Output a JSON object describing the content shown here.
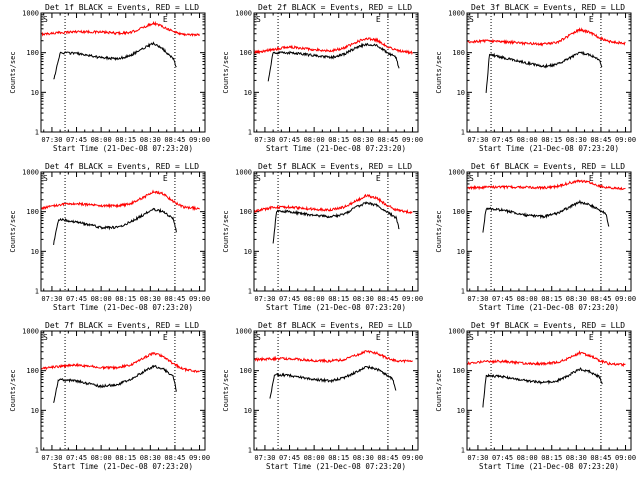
{
  "chart_data": {
    "type": "line",
    "yscale": "log",
    "ylim": [
      1,
      1000
    ],
    "y_ticks": [
      "1",
      "10",
      "100",
      "1000"
    ],
    "ylabel": "Counts/sec",
    "xlabel": "Start Time (21-Dec-08 07:23:20)",
    "x_ticks": [
      "07:30",
      "07:45",
      "08:00",
      "08:15",
      "08:30",
      "08:45",
      "09:00"
    ],
    "series_colors": {
      "events": "#000000",
      "lld": "#ff0000"
    },
    "start_marker": "S",
    "end_marker": "E",
    "panels": [
      {
        "title": "Det 1f BLACK = Events, RED = LLD",
        "events": {
          "x": [
            "07:31",
            "07:35",
            "07:45",
            "08:00",
            "08:10",
            "08:18",
            "08:25",
            "08:32",
            "08:38",
            "08:44",
            "08:46"
          ],
          "y": [
            20,
            100,
            95,
            75,
            70,
            85,
            125,
            175,
            120,
            70,
            40
          ]
        },
        "lld": {
          "x": [
            "07:23",
            "07:35",
            "07:45",
            "08:00",
            "08:10",
            "08:18",
            "08:25",
            "08:32",
            "08:38",
            "08:44",
            "08:50",
            "09:00"
          ],
          "y": [
            290,
            320,
            340,
            330,
            310,
            320,
            420,
            560,
            450,
            340,
            290,
            280
          ]
        }
      },
      {
        "title": "Det 2f BLACK = Events, RED = LLD",
        "events": {
          "x": [
            "07:32",
            "07:35",
            "07:45",
            "08:00",
            "08:10",
            "08:18",
            "08:25",
            "08:32",
            "08:38",
            "08:44",
            "08:50",
            "08:52"
          ],
          "y": [
            20,
            100,
            100,
            85,
            75,
            90,
            130,
            165,
            150,
            105,
            75,
            35
          ]
        },
        "lld": {
          "x": [
            "07:23",
            "07:35",
            "07:45",
            "08:00",
            "08:10",
            "08:18",
            "08:25",
            "08:32",
            "08:38",
            "08:44",
            "08:50",
            "09:00"
          ],
          "y": [
            100,
            120,
            140,
            120,
            110,
            130,
            180,
            230,
            210,
            150,
            115,
            100
          ]
        }
      },
      {
        "title": "Det 3f BLACK = Events, RED = LLD",
        "events": {
          "x": [
            "07:35",
            "07:37",
            "07:45",
            "08:00",
            "08:10",
            "08:18",
            "08:25",
            "08:32",
            "08:38",
            "08:44",
            "08:46"
          ],
          "y": [
            10,
            90,
            75,
            55,
            45,
            50,
            70,
            100,
            90,
            65,
            40
          ]
        },
        "lld": {
          "x": [
            "07:23",
            "07:35",
            "07:45",
            "08:00",
            "08:10",
            "08:18",
            "08:25",
            "08:32",
            "08:38",
            "08:44",
            "08:50",
            "09:00"
          ],
          "y": [
            180,
            200,
            190,
            170,
            165,
            180,
            260,
            380,
            330,
            240,
            190,
            170
          ]
        }
      },
      {
        "title": "Det 4f BLACK = Events, RED = LLD",
        "events": {
          "x": [
            "07:31",
            "07:34",
            "07:45",
            "08:00",
            "08:10",
            "08:18",
            "08:25",
            "08:32",
            "08:38",
            "08:44",
            "08:46"
          ],
          "y": [
            15,
            65,
            55,
            40,
            40,
            55,
            80,
            115,
            100,
            65,
            30
          ]
        },
        "lld": {
          "x": [
            "07:23",
            "07:35",
            "07:45",
            "08:00",
            "08:10",
            "08:18",
            "08:25",
            "08:32",
            "08:38",
            "08:44",
            "08:50",
            "09:00"
          ],
          "y": [
            120,
            150,
            160,
            140,
            140,
            160,
            220,
            320,
            280,
            180,
            130,
            120
          ]
        }
      },
      {
        "title": "Det 5f BLACK = Events, RED = LLD",
        "events": {
          "x": [
            "07:35",
            "07:37",
            "07:45",
            "08:00",
            "08:10",
            "08:18",
            "08:25",
            "08:32",
            "08:38",
            "08:44",
            "08:50",
            "08:52"
          ],
          "y": [
            15,
            105,
            100,
            80,
            75,
            85,
            125,
            170,
            145,
            100,
            70,
            35
          ]
        },
        "lld": {
          "x": [
            "07:23",
            "07:35",
            "07:45",
            "08:00",
            "08:10",
            "08:18",
            "08:25",
            "08:32",
            "08:38",
            "08:44",
            "08:50",
            "09:00"
          ],
          "y": [
            100,
            130,
            130,
            115,
            110,
            130,
            180,
            260,
            220,
            150,
            110,
            95
          ]
        }
      },
      {
        "title": "Det 6f BLACK = Events, RED = LLD",
        "events": {
          "x": [
            "07:33",
            "07:35",
            "07:45",
            "08:00",
            "08:10",
            "08:18",
            "08:25",
            "08:32",
            "08:38",
            "08:44",
            "08:48",
            "08:50"
          ],
          "y": [
            30,
            120,
            110,
            80,
            75,
            90,
            125,
            175,
            150,
            110,
            90,
            40
          ]
        },
        "lld": {
          "x": [
            "07:23",
            "07:35",
            "07:45",
            "08:00",
            "08:10",
            "08:18",
            "08:25",
            "08:32",
            "08:38",
            "08:44",
            "08:50",
            "09:00"
          ],
          "y": [
            400,
            410,
            420,
            410,
            400,
            430,
            520,
            600,
            550,
            450,
            400,
            380
          ]
        }
      },
      {
        "title": "Det 7f BLACK = Events, RED = LLD",
        "events": {
          "x": [
            "07:31",
            "07:34",
            "07:45",
            "08:00",
            "08:10",
            "08:18",
            "08:25",
            "08:32",
            "08:38",
            "08:44",
            "08:46"
          ],
          "y": [
            15,
            60,
            55,
            40,
            45,
            60,
            90,
            130,
            110,
            70,
            30
          ]
        },
        "lld": {
          "x": [
            "07:23",
            "07:35",
            "07:45",
            "08:00",
            "08:10",
            "08:18",
            "08:25",
            "08:32",
            "08:38",
            "08:44",
            "08:50",
            "09:00"
          ],
          "y": [
            110,
            130,
            140,
            120,
            120,
            140,
            200,
            280,
            230,
            150,
            110,
            95
          ]
        }
      },
      {
        "title": "Det 8f BLACK = Events, RED = LLD",
        "events": {
          "x": [
            "07:33",
            "07:36",
            "07:45",
            "08:00",
            "08:10",
            "08:18",
            "08:25",
            "08:32",
            "08:38",
            "08:44",
            "08:48",
            "08:50"
          ],
          "y": [
            20,
            80,
            75,
            60,
            55,
            65,
            90,
            125,
            110,
            80,
            60,
            30
          ]
        },
        "lld": {
          "x": [
            "07:23",
            "07:35",
            "07:45",
            "08:00",
            "08:10",
            "08:18",
            "08:25",
            "08:32",
            "08:38",
            "08:44",
            "08:50",
            "09:00"
          ],
          "y": [
            190,
            200,
            200,
            180,
            175,
            190,
            240,
            310,
            280,
            210,
            180,
            170
          ]
        }
      },
      {
        "title": "Det 9f BLACK = Events, RED = LLD",
        "events": {
          "x": [
            "07:33",
            "07:35",
            "07:45",
            "08:00",
            "08:10",
            "08:18",
            "08:25",
            "08:32",
            "08:38",
            "08:44",
            "08:46"
          ],
          "y": [
            12,
            75,
            70,
            55,
            50,
            55,
            75,
            110,
            95,
            70,
            45
          ]
        },
        "lld": {
          "x": [
            "07:23",
            "07:35",
            "07:45",
            "08:00",
            "08:10",
            "08:18",
            "08:25",
            "08:32",
            "08:38",
            "08:44",
            "08:50",
            "09:00"
          ],
          "y": [
            150,
            170,
            170,
            150,
            150,
            160,
            200,
            280,
            240,
            180,
            150,
            140
          ]
        }
      }
    ]
  }
}
